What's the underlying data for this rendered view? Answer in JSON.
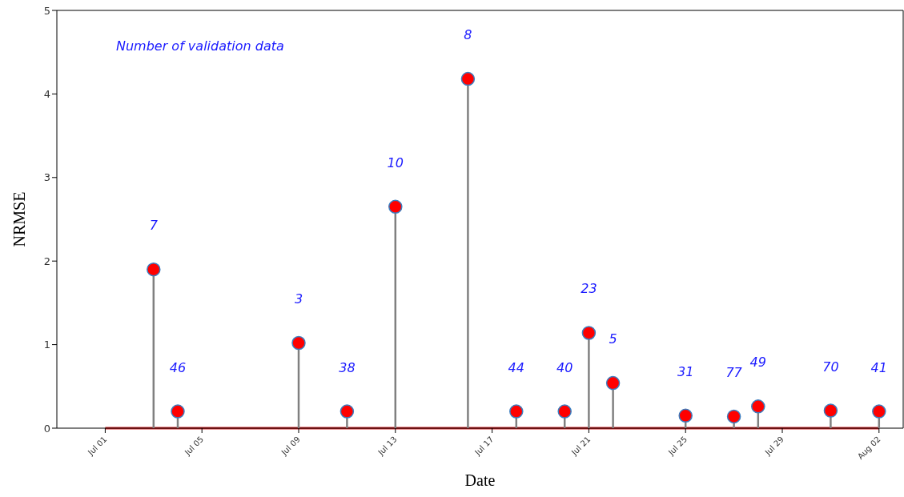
{
  "chart_data": {
    "type": "lollipop",
    "xlabel": "Date",
    "ylabel": "NRMSE",
    "xlim": [
      "--06-29",
      "--08-03"
    ],
    "xticks": [
      {
        "value": "--07-01",
        "label": "Jul 01"
      },
      {
        "value": "--07-05",
        "label": "Jul 05"
      },
      {
        "value": "--07-09",
        "label": "Jul 09"
      },
      {
        "value": "--07-13",
        "label": "Jul 13"
      },
      {
        "value": "--07-17",
        "label": "Jul 17"
      },
      {
        "value": "--07-21",
        "label": "Jul 21"
      },
      {
        "value": "--07-25",
        "label": "Jul 25"
      },
      {
        "value": "--07-29",
        "label": "Jul 29"
      },
      {
        "value": "--08-02",
        "label": "Aug 02"
      }
    ],
    "ylim": [
      0,
      5
    ],
    "yticks": [
      0,
      1,
      2,
      3,
      4,
      5
    ],
    "marker": "circle",
    "grid": false,
    "series": [
      {
        "color": "#ff0000",
        "x": [
          "--07-03",
          "--07-04",
          "--07-09",
          "--07-11",
          "--07-13",
          "--07-16",
          "--07-18",
          "--07-20",
          "--07-21",
          "--07-22",
          "--07-25",
          "--07-27",
          "--07-28",
          "--07-31",
          "--08-02"
        ],
        "values": [
          1.9,
          0.2,
          1.02,
          0.2,
          2.65,
          4.18,
          0.2,
          0.2,
          1.14,
          0.54,
          0.15,
          0.14,
          0.26,
          0.21,
          0.2
        ]
      },
      {
        "type": "line",
        "marker": "none",
        "color": "#d62728",
        "x": [
          "--07-01",
          "--08-02"
        ],
        "values": [
          0,
          0
        ]
      }
    ],
    "annotations": [
      "Number of validation data",
      {
        "text": "7",
        "x": "--07-03",
        "y": 1.9
      },
      {
        "text": "46",
        "x": "--07-04",
        "y": 0.2
      },
      {
        "text": "3",
        "x": "--07-09",
        "y": 1.02
      },
      {
        "text": "38",
        "x": "--07-11",
        "y": 0.2
      },
      {
        "text": "10",
        "x": "--07-13",
        "y": 2.65
      },
      {
        "text": "8",
        "x": "--07-16",
        "y": 4.18
      },
      {
        "text": "44",
        "x": "--07-18",
        "y": 0.2
      },
      {
        "text": "40",
        "x": "--07-20",
        "y": 0.2
      },
      {
        "text": "23",
        "x": "--07-21",
        "y": 1.14
      },
      {
        "text": "5",
        "x": "--07-22",
        "y": 0.54
      },
      {
        "text": "31",
        "x": "--07-25",
        "y": 0.15
      },
      {
        "text": "77",
        "x": "--07-27",
        "y": 0.14
      },
      {
        "text": "49",
        "x": "--07-28",
        "y": 0.26
      },
      {
        "text": "70",
        "x": "--07-31",
        "y": 0.21
      },
      {
        "text": "41",
        "x": "--08-02",
        "y": 0.2
      }
    ]
  }
}
